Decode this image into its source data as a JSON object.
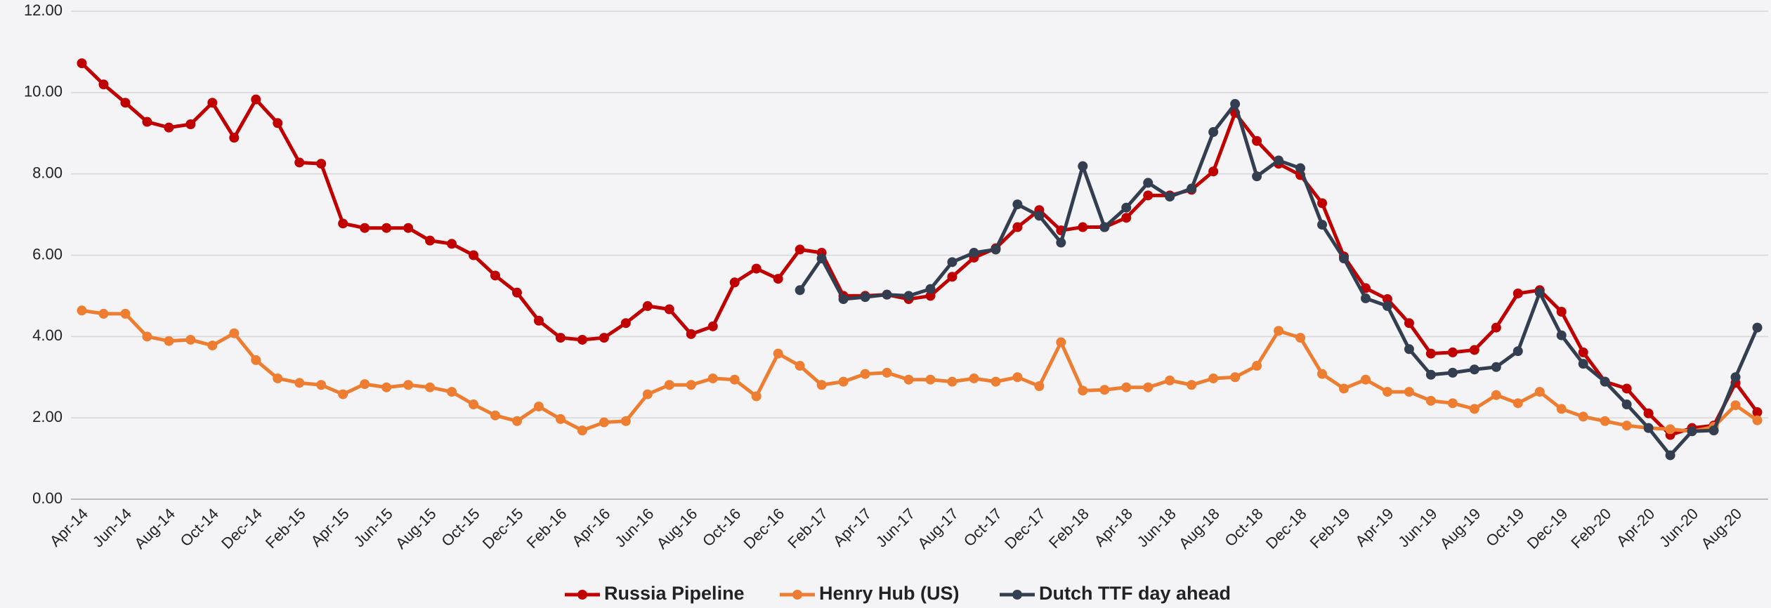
{
  "chart_data": {
    "type": "line",
    "categories": [
      "Apr-14",
      null,
      "Jun-14",
      null,
      "Aug-14",
      null,
      "Oct-14",
      null,
      "Dec-14",
      null,
      "Feb-15",
      null,
      "Apr-15",
      null,
      "Jun-15",
      null,
      "Aug-15",
      null,
      "Oct-15",
      null,
      "Dec-15",
      null,
      "Feb-16",
      null,
      "Apr-16",
      null,
      "Jun-16",
      null,
      "Aug-16",
      null,
      "Oct-16",
      null,
      "Dec-16",
      null,
      "Feb-17",
      null,
      "Apr-17",
      null,
      "Jun-17",
      null,
      "Aug-17",
      null,
      "Oct-17",
      null,
      "Dec-17",
      null,
      "Feb-18",
      null,
      "Apr-18",
      null,
      "Jun-18",
      null,
      "Aug-18",
      null,
      "Oct-18",
      null,
      "Dec-18",
      null,
      "Feb-19",
      null,
      "Apr-19",
      null,
      "Jun-19",
      null,
      "Aug-19",
      null,
      "Oct-19",
      null,
      "Dec-19",
      null,
      "Feb-20",
      null,
      "Apr-20",
      null,
      "Jun-20",
      null,
      "Aug-20",
      null
    ],
    "series": [
      {
        "name": "Russia Pipeline",
        "color": "#c00000",
        "values": [
          10.72,
          10.2,
          9.75,
          9.28,
          9.14,
          9.22,
          9.75,
          8.89,
          9.83,
          9.25,
          8.28,
          8.25,
          6.78,
          6.67,
          6.67,
          6.67,
          6.36,
          6.28,
          6.0,
          5.5,
          5.08,
          4.39,
          3.97,
          3.92,
          3.97,
          4.33,
          4.75,
          4.67,
          4.06,
          4.25,
          5.33,
          5.67,
          5.42,
          6.14,
          6.06,
          5.0,
          5.0,
          5.03,
          4.92,
          5.0,
          5.47,
          5.94,
          6.17,
          6.69,
          7.11,
          6.61,
          6.69,
          6.69,
          6.92,
          7.47,
          7.47,
          7.61,
          8.06,
          9.5,
          8.81,
          8.25,
          7.97,
          7.28,
          5.97,
          5.19,
          4.92,
          4.33,
          3.58,
          3.61,
          3.67,
          4.22,
          5.06,
          5.14,
          4.61,
          3.61,
          2.89,
          2.72,
          2.11,
          1.58,
          1.75,
          1.81,
          2.86,
          2.14
        ]
      },
      {
        "name": "Henry Hub (US)",
        "color": "#ed7d31",
        "values": [
          4.64,
          4.56,
          4.56,
          4.0,
          3.89,
          3.92,
          3.78,
          4.08,
          3.42,
          2.97,
          2.86,
          2.81,
          2.58,
          2.83,
          2.75,
          2.81,
          2.75,
          2.64,
          2.33,
          2.06,
          1.92,
          2.28,
          1.97,
          1.69,
          1.89,
          1.92,
          2.58,
          2.81,
          2.81,
          2.97,
          2.94,
          2.53,
          3.58,
          3.28,
          2.81,
          2.89,
          3.08,
          3.11,
          2.94,
          2.94,
          2.89,
          2.97,
          2.89,
          3.0,
          2.78,
          3.86,
          2.67,
          2.69,
          2.75,
          2.75,
          2.92,
          2.81,
          2.97,
          3.0,
          3.28,
          4.14,
          3.97,
          3.08,
          2.72,
          2.94,
          2.64,
          2.64,
          2.42,
          2.36,
          2.22,
          2.56,
          2.36,
          2.64,
          2.22,
          2.03,
          1.92,
          1.81,
          1.75,
          1.72,
          1.67,
          1.78,
          2.31,
          1.94
        ]
      },
      {
        "name": "Dutch TTF day ahead",
        "color": "#333f50",
        "values": [
          null,
          null,
          null,
          null,
          null,
          null,
          null,
          null,
          null,
          null,
          null,
          null,
          null,
          null,
          null,
          null,
          null,
          null,
          null,
          null,
          null,
          null,
          null,
          null,
          null,
          null,
          null,
          null,
          null,
          null,
          null,
          null,
          null,
          5.14,
          5.92,
          4.92,
          4.97,
          5.03,
          5.0,
          5.17,
          5.83,
          6.06,
          6.14,
          7.25,
          6.97,
          6.31,
          8.19,
          6.69,
          7.17,
          7.78,
          7.44,
          7.64,
          9.03,
          9.72,
          7.94,
          8.33,
          8.14,
          6.75,
          5.92,
          4.94,
          4.75,
          3.69,
          3.06,
          3.11,
          3.19,
          3.25,
          3.64,
          5.08,
          4.03,
          3.33,
          2.89,
          2.33,
          1.75,
          1.08,
          1.67,
          1.69,
          3.0,
          4.22
        ]
      }
    ],
    "ylim": [
      0,
      12
    ],
    "yticks": [
      {
        "value": 0,
        "label": "0.00"
      },
      {
        "value": 2,
        "label": "2.00"
      },
      {
        "value": 4,
        "label": "4.00"
      },
      {
        "value": 6,
        "label": "6.00"
      },
      {
        "value": 8,
        "label": "8.00"
      },
      {
        "value": 10,
        "label": "10.00"
      },
      {
        "value": 12,
        "label": "12.00"
      }
    ],
    "grid": true,
    "legend": "bottom"
  }
}
